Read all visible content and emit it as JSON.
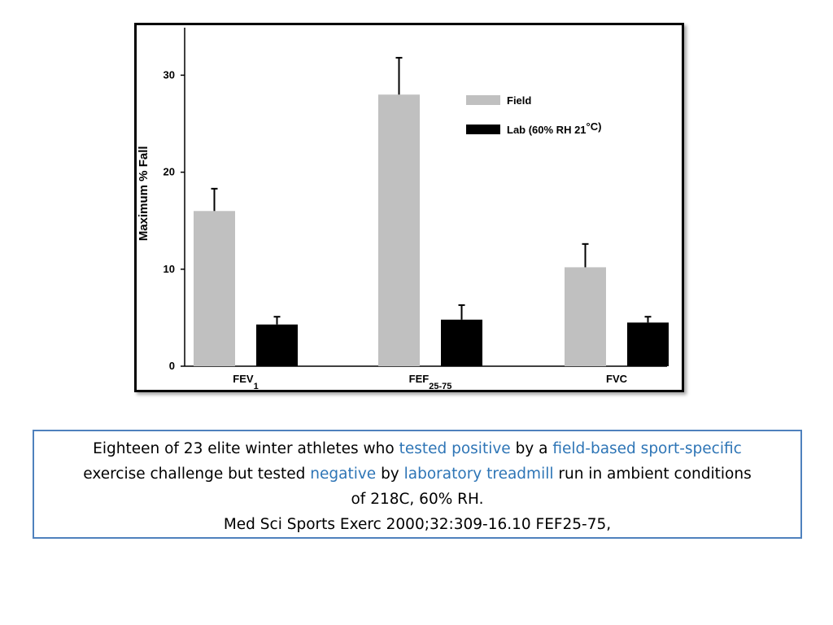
{
  "colors": {
    "field": "#c0c0c0",
    "lab": "#000000",
    "caption_border": "#4f81bd",
    "highlight": "#2e75b6"
  },
  "chart_data": {
    "type": "bar",
    "title": "",
    "ylabel": "Maximum % Fall",
    "xlabel": "",
    "ylim": [
      0,
      35
    ],
    "yticks": [
      0,
      10,
      20,
      30
    ],
    "categories": [
      {
        "main": "FEV",
        "sub": "1"
      },
      {
        "main": "FEF",
        "sub": "25-75"
      },
      {
        "main": "FVC",
        "sub": ""
      }
    ],
    "series": [
      {
        "name": "Field",
        "color": "#c0c0c0",
        "values": [
          16,
          28,
          10.2
        ],
        "errors": [
          2.3,
          3.8,
          2.4
        ]
      },
      {
        "name": "Lab (60% RH 21",
        "name_super": "°C)",
        "color": "#000000",
        "values": [
          4.3,
          4.8,
          4.5
        ],
        "errors": [
          0.8,
          1.5,
          0.6
        ]
      }
    ],
    "grid": false,
    "legend_position": "top-right"
  },
  "caption": {
    "line1_a": "Eighteen of 23 elite winter athletes who ",
    "line1_b": "tested positive",
    "line1_c": " by a ",
    "line1_d": "field-based sport-specific",
    "line2_a": "exercise challenge but tested ",
    "line2_b": "negative",
    "line2_c": " by ",
    "line2_d": "laboratory treadmill",
    "line2_e": " run in ambient conditions",
    "line3": "of 218C, 60% RH.",
    "line4": "Med Sci Sports Exerc 2000;32:309-16.10 FEF25-75,"
  }
}
